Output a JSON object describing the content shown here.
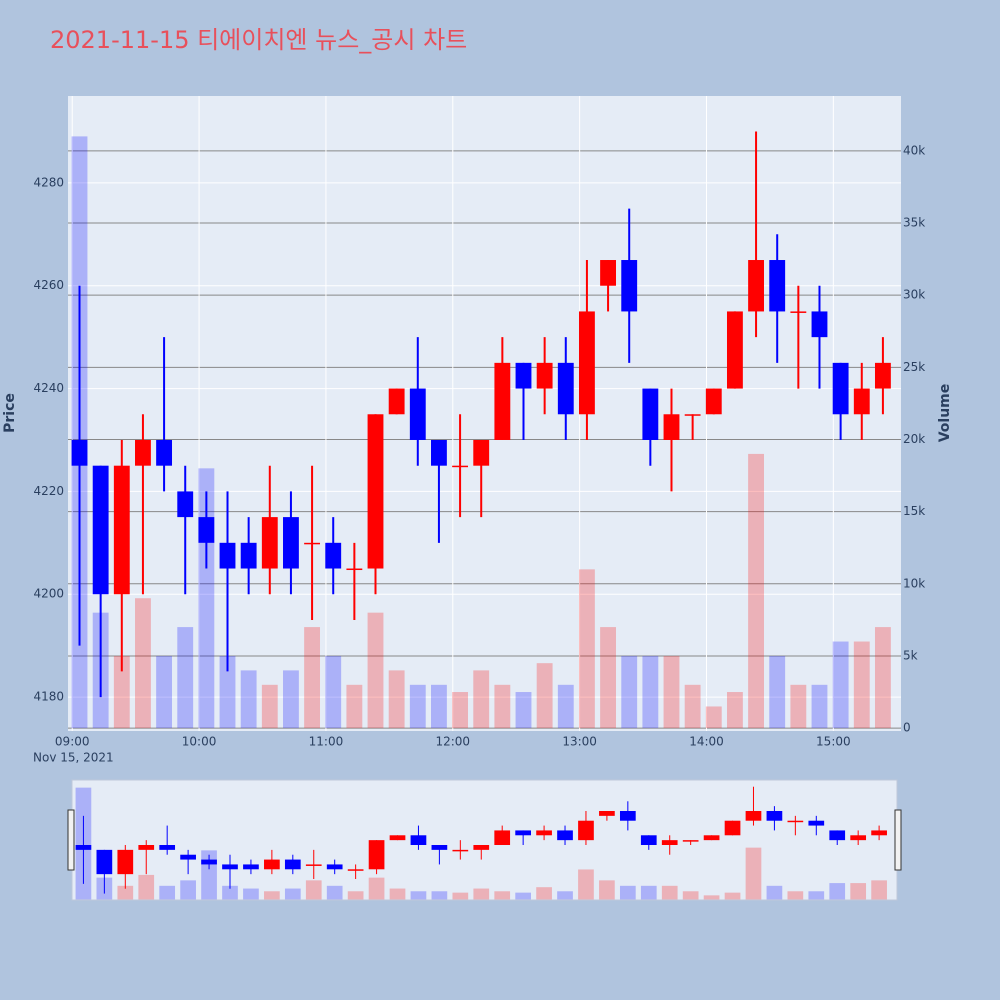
{
  "chart_data": {
    "type": "candlestick",
    "title": "2021-11-15 티에이치엔 뉴스_공시 차트",
    "x": [
      "09:00",
      "09:10",
      "09:20",
      "09:30",
      "09:40",
      "09:50",
      "10:00",
      "10:10",
      "10:20",
      "10:30",
      "10:40",
      "10:50",
      "11:00",
      "11:10",
      "11:20",
      "11:30",
      "11:40",
      "11:50",
      "12:00",
      "12:10",
      "12:20",
      "12:30",
      "12:40",
      "12:50",
      "13:00",
      "13:10",
      "13:20",
      "13:30",
      "13:40",
      "13:50",
      "14:00",
      "14:10",
      "14:20",
      "14:30",
      "14:40",
      "14:50",
      "15:00",
      "15:10",
      "15:20"
    ],
    "open": [
      4230,
      4225,
      4200,
      4225,
      4230,
      4220,
      4215,
      4210,
      4210,
      4205,
      4215,
      4210,
      4210,
      4205,
      4205,
      4235,
      4240,
      4230,
      4225,
      4225,
      4230,
      4245,
      4240,
      4245,
      4235,
      4260,
      4265,
      4240,
      4230,
      4235,
      4235,
      4240,
      4255,
      4265,
      4255,
      4255,
      4245,
      4235,
      4240
    ],
    "high": [
      4260,
      4225,
      4230,
      4235,
      4250,
      4225,
      4220,
      4220,
      4215,
      4225,
      4220,
      4225,
      4215,
      4210,
      4235,
      4240,
      4250,
      4230,
      4235,
      4230,
      4250,
      4245,
      4250,
      4250,
      4265,
      4265,
      4275,
      4240,
      4240,
      4235,
      4240,
      4255,
      4290,
      4270,
      4260,
      4260,
      4245,
      4245,
      4250
    ],
    "low": [
      4190,
      4180,
      4185,
      4200,
      4220,
      4200,
      4205,
      4185,
      4200,
      4200,
      4200,
      4195,
      4200,
      4195,
      4200,
      4235,
      4225,
      4210,
      4215,
      4215,
      4230,
      4230,
      4235,
      4230,
      4230,
      4255,
      4245,
      4225,
      4220,
      4230,
      4235,
      4240,
      4250,
      4245,
      4240,
      4240,
      4230,
      4230,
      4235
    ],
    "close": [
      4225,
      4200,
      4225,
      4230,
      4225,
      4215,
      4210,
      4205,
      4205,
      4215,
      4205,
      4210,
      4205,
      4205,
      4235,
      4240,
      4230,
      4225,
      4225,
      4230,
      4245,
      4240,
      4245,
      4235,
      4255,
      4265,
      4255,
      4230,
      4235,
      4235,
      4240,
      4255,
      4265,
      4255,
      4255,
      4250,
      4235,
      4240,
      4245
    ],
    "volume": [
      41000,
      8000,
      5000,
      9000,
      5000,
      7000,
      18000,
      5000,
      4000,
      3000,
      4000,
      7000,
      5000,
      3000,
      8000,
      4000,
      3000,
      3000,
      2500,
      4000,
      3000,
      2500,
      4500,
      3000,
      11000,
      7000,
      5000,
      5000,
      5000,
      3000,
      1500,
      2500,
      19000,
      5000,
      3000,
      3000,
      6000,
      6000,
      7000
    ],
    "increasing_color": "#ff0000",
    "decreasing_color": "#0000ff",
    "xlim": [
      "08:58",
      "15:32"
    ],
    "xticks": [
      "09:00",
      "10:00",
      "11:00",
      "12:00",
      "13:00",
      "14:00",
      "15:00"
    ],
    "x_date_label": "Nov 15, 2021",
    "ylim": [
      4173.4,
      4296.9
    ],
    "yticks": [
      4180,
      4200,
      4220,
      4240,
      4260,
      4280
    ],
    "y2lim": [
      -200,
      43800
    ],
    "y2ticks": [
      0,
      {
        "value": 5000,
        "label": "5k"
      },
      {
        "value": 10000,
        "label": "10k"
      },
      {
        "value": 15000,
        "label": "15k"
      },
      {
        "value": 20000,
        "label": "20k"
      },
      {
        "value": 25000,
        "label": "25k"
      },
      {
        "value": 30000,
        "label": "30k"
      },
      {
        "value": 35000,
        "label": "35k"
      },
      {
        "value": 40000,
        "label": "40k"
      }
    ],
    "y_label": "Price",
    "y2_label": "Volume"
  }
}
